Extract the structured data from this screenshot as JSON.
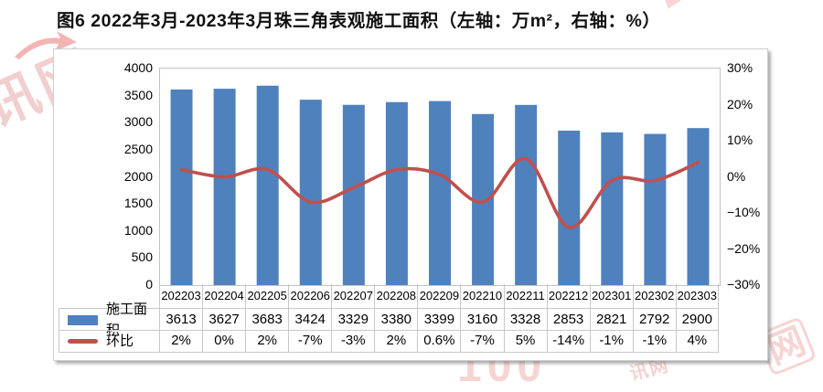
{
  "title": "图6 2022年3月-2023年3月珠三角表观施工面积（左轴：万m²，右轴：%）",
  "watermark": {
    "side_text": "讯网",
    "bottom_text": "100",
    "corner_text": "网",
    "small_text": "讯网",
    "accent_color": "#e57373"
  },
  "chart_data": {
    "type": "bar+line",
    "title": "2022年3月-2023年3月珠三角表观施工面积",
    "categories": [
      "202203",
      "202204",
      "202205",
      "202206",
      "202207",
      "202208",
      "202209",
      "202210",
      "202211",
      "202212",
      "202301",
      "202302",
      "202303"
    ],
    "series": [
      {
        "name": "施工面积",
        "type": "bar",
        "axis": "left",
        "color": "#4f81bd",
        "values": [
          3613,
          3627,
          3683,
          3424,
          3329,
          3380,
          3399,
          3160,
          3328,
          2853,
          2821,
          2792,
          2900
        ]
      },
      {
        "name": "环比",
        "type": "line",
        "axis": "right",
        "color": "#c0504d",
        "smooth": true,
        "values": [
          2,
          0,
          2,
          -7,
          -3,
          2,
          0.6,
          -7,
          5,
          -14,
          -1,
          -1,
          4
        ]
      }
    ],
    "left_axis": {
      "label": "万m²",
      "min": 0,
      "max": 4000,
      "step": 500,
      "ticks": [
        "4000",
        "3500",
        "3000",
        "2500",
        "2000",
        "1500",
        "1000",
        "500",
        "0"
      ]
    },
    "right_axis": {
      "label": "%",
      "min": -30,
      "max": 30,
      "step": 10,
      "ticks": [
        "30%",
        "20%",
        "10%",
        "0%",
        "−10%",
        "−20%",
        "−30%"
      ]
    },
    "grid": false,
    "legend_position": "table-left"
  },
  "table": {
    "rows": [
      {
        "label": "施工面积",
        "swatch": "bar",
        "values": [
          "3613",
          "3627",
          "3683",
          "3424",
          "3329",
          "3380",
          "3399",
          "3160",
          "3328",
          "2853",
          "2821",
          "2792",
          "2900"
        ]
      },
      {
        "label": "环比",
        "swatch": "line",
        "values": [
          "2%",
          "0%",
          "2%",
          "-7%",
          "-3%",
          "2%",
          "0.6%",
          "-7%",
          "5%",
          "-14%",
          "-1%",
          "-1%",
          "4%"
        ]
      }
    ]
  }
}
